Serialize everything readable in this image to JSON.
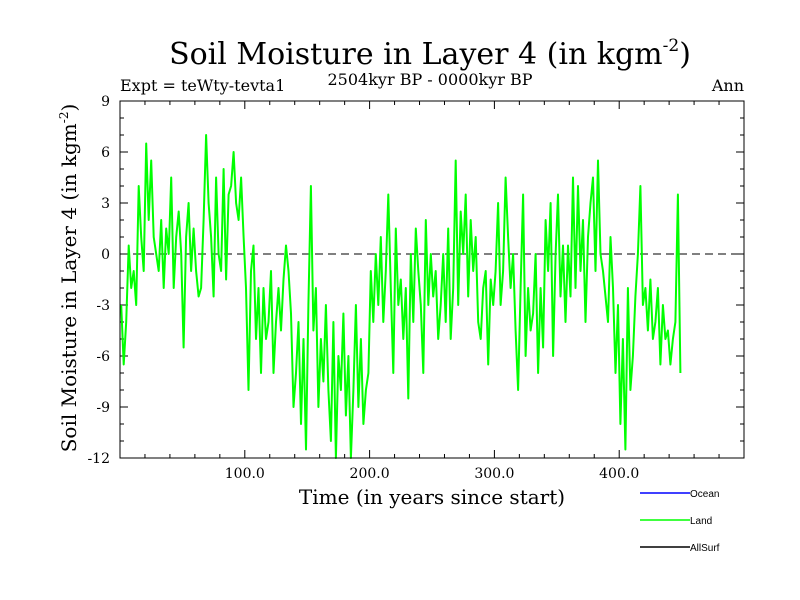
{
  "chart_data": {
    "type": "line",
    "title": "Soil Moisture in Layer 4 (in kgm",
    "title_sup": "-2",
    "title_close": ")",
    "subtitle": "2504kyr BP - 0000kyr BP",
    "expt_label": "Expt = teWty-tevta1",
    "season_label": "Ann",
    "ylabel": "Soil Moisture in Layer 4 (in kgm",
    "ylabel_sup": "-2",
    "ylabel_close": ")",
    "xlabel": "Time (in years since start)",
    "xlim": [
      0,
      500
    ],
    "ylim": [
      -12,
      9
    ],
    "xticks": [
      100,
      200,
      300,
      400
    ],
    "xtick_labels": [
      "100.0",
      "200.0",
      "300.0",
      "400.0"
    ],
    "yticks": [
      -12,
      -9,
      -6,
      -3,
      0,
      3,
      6,
      9
    ],
    "ytick_labels": [
      "-12",
      "-9",
      "-6",
      "-3",
      "0",
      "3",
      "6",
      "9"
    ],
    "zero_line": true,
    "legend": [
      {
        "name": "Ocean",
        "color": "#0000ff"
      },
      {
        "name": "Land",
        "color": "#00ff00"
      },
      {
        "name": "AllSurf",
        "color": "#000000"
      }
    ],
    "series": [
      {
        "name": "Land",
        "color": "#00ff00",
        "x_start": 1,
        "x_step": 2,
        "values": [
          -3.0,
          -6.5,
          -4.0,
          0.5,
          -2.0,
          -1.0,
          -3.0,
          4.0,
          1.0,
          -1.0,
          6.5,
          2.0,
          5.5,
          1.0,
          0.0,
          -1.0,
          2.0,
          -2.0,
          1.5,
          0.0,
          4.5,
          -2.0,
          1.0,
          2.5,
          0.0,
          -5.5,
          1.0,
          3.0,
          -1.0,
          1.5,
          -1.0,
          -2.5,
          -2.0,
          2.0,
          7.0,
          3.0,
          1.0,
          -2.5,
          4.5,
          0.0,
          -1.0,
          5.0,
          -1.5,
          3.5,
          4.0,
          6.0,
          3.0,
          2.0,
          4.5,
          1.0,
          -2.0,
          -8.0,
          -1.0,
          0.5,
          -5.0,
          -2.0,
          -7.0,
          -2.0,
          -5.0,
          -4.0,
          -1.0,
          -7.0,
          -4.0,
          -2.0,
          -4.5,
          -1.5,
          0.5,
          -1.0,
          -3.5,
          -9.0,
          -7.0,
          -4.0,
          -10.0,
          -5.0,
          -11.5,
          -3.0,
          4.0,
          -4.5,
          -2.0,
          -9.0,
          -5.0,
          -7.5,
          -3.0,
          -8.0,
          -11.0,
          -4.0,
          -12.0,
          -6.0,
          -8.0,
          -3.5,
          -9.5,
          -6.0,
          -12.0,
          -8.0,
          -3.0,
          -9.0,
          -5.0,
          -10.0,
          -8.0,
          -7.0,
          -1.0,
          -4.0,
          0.0,
          -3.0,
          1.0,
          -4.0,
          -1.0,
          3.5,
          -2.0,
          -7.0,
          1.5,
          -3.0,
          -1.5,
          -5.0,
          -2.0,
          -8.5,
          0.0,
          -4.0,
          1.5,
          -1.0,
          -3.0,
          -7.0,
          2.0,
          -3.0,
          0.0,
          -2.5,
          -1.0,
          -5.0,
          -3.0,
          0.0,
          -4.0,
          1.5,
          -5.0,
          -2.0,
          5.5,
          -3.0,
          2.5,
          0.0,
          3.5,
          -2.5,
          2.0,
          -1.0,
          1.0,
          -4.0,
          -5.0,
          -2.0,
          -1.0,
          -6.5,
          -1.5,
          -3.0,
          -1.0,
          3.0,
          -3.0,
          -1.0,
          4.5,
          1.0,
          -2.0,
          0.0,
          -4.5,
          -8.0,
          -2.0,
          3.5,
          -6.0,
          -2.0,
          -4.5,
          -3.5,
          0.0,
          -7.0,
          -2.0,
          -5.5,
          2.0,
          -1.0,
          3.0,
          -6.0,
          0.0,
          3.5,
          -2.5,
          0.5,
          -4.0,
          0.5,
          -2.5,
          4.5,
          -2.0,
          4.0,
          -1.0,
          2.0,
          -4.0,
          1.0,
          3.0,
          4.5,
          -1.0,
          5.5,
          0.0,
          -1.0,
          -2.5,
          -4.0,
          1.0,
          -2.0,
          -7.0,
          -3.0,
          -10.0,
          -5.0,
          -11.5,
          -2.0,
          -8.0,
          -6.0,
          -2.5,
          0.0,
          4.0,
          -3.0,
          -2.0,
          -4.5,
          -1.5,
          -5.0,
          -4.0,
          -2.0,
          -6.5,
          -3.0,
          -5.0,
          -4.5,
          -6.5,
          -5.0,
          -4.0,
          3.5,
          -7.0
        ]
      }
    ]
  }
}
